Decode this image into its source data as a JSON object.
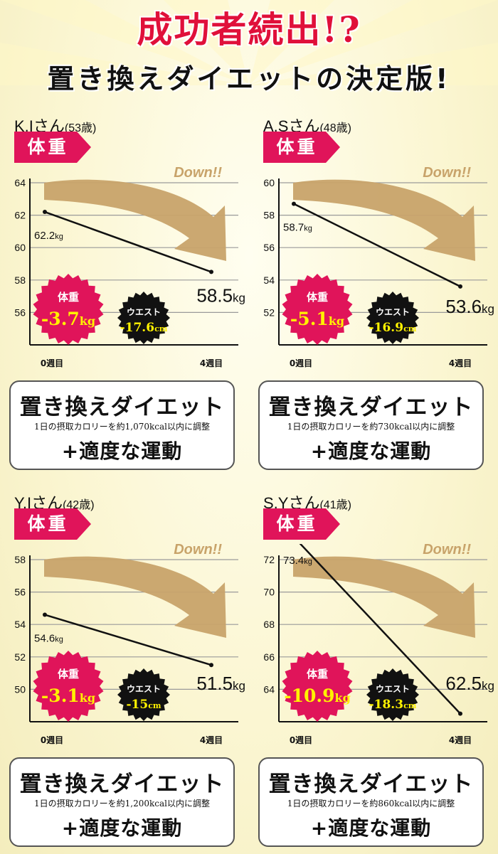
{
  "header": {
    "line1": "成功者続出!?",
    "line2": "置き換えダイエットの決定版!"
  },
  "colors": {
    "accent": "#e0145a",
    "arrow": "#c8a36a",
    "highlight": "#fff200"
  },
  "panels": [
    {
      "name": "K.Iさん",
      "age": "(53歳)",
      "tag": "体重",
      "down_label": "Down!!",
      "start_label": "62.2",
      "start_unit": "kg",
      "end_label": "58.5",
      "end_unit": "kg",
      "x_labels": [
        "0週目",
        "4週目"
      ],
      "weight_badge": {
        "label": "体重",
        "value": "-3.7",
        "unit": "kg"
      },
      "waist_badge": {
        "label": "ウエスト",
        "value": "-17.6",
        "unit": "cm"
      },
      "plan_title": "置き換えダイエット",
      "plan_detail": "1日の摂取カロリーを約1,070kcal以内に調整",
      "plan_extra": "+適度な運動",
      "chart_data": {
        "type": "line",
        "x": [
          "0週目",
          "4週目"
        ],
        "values": [
          62.2,
          58.5
        ],
        "ylim": [
          54,
          64
        ],
        "yticks": [
          64,
          62,
          60,
          58,
          56
        ],
        "grid": true
      }
    },
    {
      "name": "A.Sさん",
      "age": "(48歳)",
      "tag": "体重",
      "down_label": "Down!!",
      "start_label": "58.7",
      "start_unit": "kg",
      "end_label": "53.6",
      "end_unit": "kg",
      "x_labels": [
        "0週目",
        "4週目"
      ],
      "weight_badge": {
        "label": "体重",
        "value": "-5.1",
        "unit": "kg"
      },
      "waist_badge": {
        "label": "ウエスト",
        "value": "-16.9",
        "unit": "cm"
      },
      "plan_title": "置き換えダイエット",
      "plan_detail": "1日の摂取カロリーを約730kcal以内に調整",
      "plan_extra": "+適度な運動",
      "chart_data": {
        "type": "line",
        "x": [
          "0週目",
          "4週目"
        ],
        "values": [
          58.7,
          53.6
        ],
        "ylim": [
          50,
          60
        ],
        "yticks": [
          60,
          58,
          56,
          54,
          52
        ],
        "grid": true
      }
    },
    {
      "name": "Y.Iさん",
      "age": "(42歳)",
      "tag": "体重",
      "down_label": "Down!!",
      "start_label": "54.6",
      "start_unit": "kg",
      "end_label": "51.5",
      "end_unit": "kg",
      "x_labels": [
        "0週目",
        "4週目"
      ],
      "weight_badge": {
        "label": "体重",
        "value": "-3.1",
        "unit": "kg"
      },
      "waist_badge": {
        "label": "ウエスト",
        "value": "-15",
        "unit": "cm"
      },
      "plan_title": "置き換えダイエット",
      "plan_detail": "1日の摂取カロリーを約1,200kcal以内に調整",
      "plan_extra": "+適度な運動",
      "chart_data": {
        "type": "line",
        "x": [
          "0週目",
          "4週目"
        ],
        "values": [
          54.6,
          51.5
        ],
        "ylim": [
          48,
          58
        ],
        "yticks": [
          58,
          56,
          54,
          52,
          50
        ],
        "grid": true
      }
    },
    {
      "name": "S.Yさん",
      "age": "(41歳)",
      "tag": "体重",
      "down_label": "Down!!",
      "start_label": "73.4",
      "start_unit": "kg",
      "end_label": "62.5",
      "end_unit": "kg",
      "x_labels": [
        "0週目",
        "4週目"
      ],
      "weight_badge": {
        "label": "体重",
        "value": "-10.9",
        "unit": "kg"
      },
      "waist_badge": {
        "label": "ウエスト",
        "value": "-18.3",
        "unit": "cm"
      },
      "plan_title": "置き換えダイエット",
      "plan_detail": "1日の摂取カロリーを約860kcal以内に調整",
      "plan_extra": "+適度な運動",
      "chart_data": {
        "type": "line",
        "x": [
          "0週目",
          "4週目"
        ],
        "values": [
          73.4,
          62.5
        ],
        "ylim": [
          62,
          72
        ],
        "yticks": [
          72,
          70,
          68,
          66,
          64
        ],
        "grid": true
      }
    }
  ]
}
